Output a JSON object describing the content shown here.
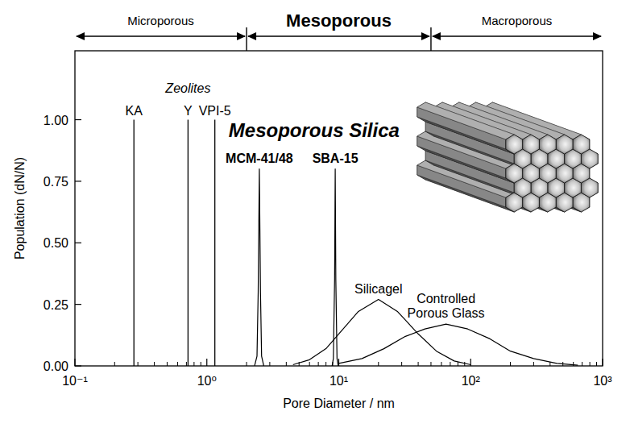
{
  "chart_data": {
    "type": "line",
    "x_label": "Pore Diameter / nm",
    "y_label": "Population (dN/N)",
    "log": "x",
    "grid": false,
    "xlim": [
      0.1,
      1000
    ],
    "xticks": [
      {
        "value": 0.1,
        "label": "10⁻¹"
      },
      {
        "value": 1,
        "label": "10⁰"
      },
      {
        "value": 10,
        "label": "10¹"
      },
      {
        "value": 100,
        "label": "10²"
      },
      {
        "value": 1000,
        "label": "10³"
      }
    ],
    "ylim": [
      0,
      1.28
    ],
    "yticks": [
      {
        "value": 0,
        "label": "0.00"
      },
      {
        "value": 0.25,
        "label": "0.25"
      },
      {
        "value": 0.5,
        "label": "0.50"
      },
      {
        "value": 0.75,
        "label": "0.75"
      },
      {
        "value": 1,
        "label": "1.00"
      }
    ],
    "regions": [
      {
        "label": "Microporous",
        "from": 0.1,
        "to": 2
      },
      {
        "label": "Mesoporous",
        "from": 2,
        "to": 50
      },
      {
        "label": "Macroporous",
        "from": 50,
        "to": 1000
      }
    ],
    "annotations": [
      {
        "text": "Zeolites",
        "x": 0.72,
        "y": 1.11
      },
      {
        "text": "Mesoporous Silica",
        "x": 6.5,
        "y": 0.93
      }
    ],
    "series": [
      {
        "name": "KA",
        "type": "stem",
        "color": "#000000",
        "x": [
          0.28
        ],
        "values": [
          1.0
        ]
      },
      {
        "name": "Y",
        "type": "stem",
        "color": "#000000",
        "x": [
          0.72
        ],
        "values": [
          1.0
        ]
      },
      {
        "name": "VPI-5",
        "type": "stem",
        "color": "#000000",
        "x": [
          1.15
        ],
        "values": [
          1.0
        ]
      },
      {
        "name": "MCM-41/48",
        "type": "line",
        "color": "#000000",
        "x": [
          2.3,
          2.4,
          2.45,
          2.5,
          2.55,
          2.6,
          2.7
        ],
        "values": [
          0,
          0.04,
          0.3,
          0.8,
          0.3,
          0.04,
          0
        ]
      },
      {
        "name": "SBA-15",
        "type": "line",
        "color": "#000000",
        "x": [
          8.9,
          9.1,
          9.3,
          9.4,
          9.5,
          9.7,
          9.9
        ],
        "values": [
          0,
          0.03,
          0.35,
          0.8,
          0.35,
          0.03,
          0
        ]
      },
      {
        "name": "Silicagel",
        "type": "line",
        "color": "#000000",
        "x": [
          4.5,
          6,
          8,
          10,
          14,
          20,
          28,
          40,
          55,
          75,
          100
        ],
        "values": [
          0.005,
          0.025,
          0.07,
          0.13,
          0.22,
          0.27,
          0.22,
          0.13,
          0.06,
          0.02,
          0.005
        ]
      },
      {
        "name": "Controlled Porous Glass",
        "type": "line",
        "color": "#000000",
        "x": [
          10,
          15,
          22,
          32,
          45,
          65,
          95,
          140,
          200,
          300,
          450,
          650
        ],
        "values": [
          0.01,
          0.03,
          0.07,
          0.12,
          0.15,
          0.17,
          0.15,
          0.11,
          0.06,
          0.03,
          0.01,
          0.003
        ]
      }
    ]
  }
}
